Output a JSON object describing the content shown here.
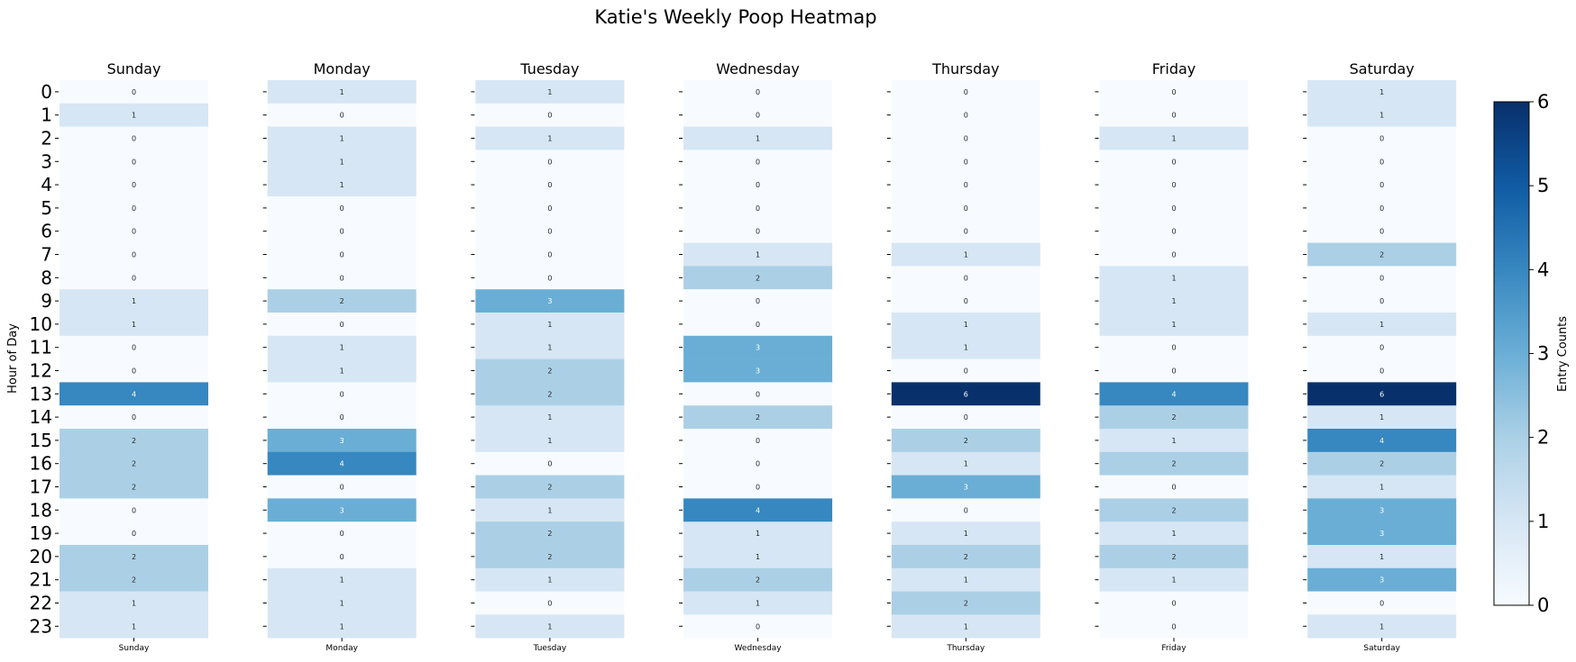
{
  "chart_data": {
    "type": "heatmap",
    "title": "Katie's Weekly Poop Heatmap",
    "ylabel": "Hour of Day",
    "hours": [
      0,
      1,
      2,
      3,
      4,
      5,
      6,
      7,
      8,
      9,
      10,
      11,
      12,
      13,
      14,
      15,
      16,
      17,
      18,
      19,
      20,
      21,
      22,
      23
    ],
    "days": [
      "Sunday",
      "Monday",
      "Tuesday",
      "Wednesday",
      "Thursday",
      "Friday",
      "Saturday"
    ],
    "values": {
      "Sunday": [
        0,
        1,
        0,
        0,
        0,
        0,
        0,
        0,
        0,
        1,
        1,
        0,
        0,
        4,
        0,
        2,
        2,
        2,
        0,
        0,
        2,
        2,
        1,
        1
      ],
      "Monday": [
        1,
        0,
        1,
        1,
        1,
        0,
        0,
        0,
        0,
        2,
        0,
        1,
        1,
        0,
        0,
        3,
        4,
        0,
        3,
        0,
        0,
        1,
        1,
        1
      ],
      "Tuesday": [
        1,
        0,
        1,
        0,
        0,
        0,
        0,
        0,
        0,
        3,
        1,
        1,
        2,
        2,
        1,
        1,
        0,
        2,
        1,
        2,
        2,
        1,
        0,
        1
      ],
      "Wednesday": [
        0,
        0,
        1,
        0,
        0,
        0,
        0,
        1,
        2,
        0,
        0,
        3,
        3,
        0,
        2,
        0,
        0,
        0,
        4,
        1,
        1,
        2,
        1,
        0
      ],
      "Thursday": [
        0,
        0,
        0,
        0,
        0,
        0,
        0,
        1,
        0,
        0,
        1,
        1,
        0,
        6,
        0,
        2,
        1,
        3,
        0,
        1,
        2,
        1,
        2,
        1
      ],
      "Friday": [
        0,
        0,
        1,
        0,
        0,
        0,
        0,
        0,
        1,
        1,
        1,
        0,
        0,
        4,
        2,
        1,
        2,
        0,
        2,
        1,
        2,
        1,
        0,
        0
      ],
      "Saturday": [
        1,
        1,
        0,
        0,
        0,
        0,
        0,
        2,
        0,
        0,
        1,
        0,
        0,
        6,
        1,
        4,
        2,
        1,
        3,
        3,
        1,
        3,
        0,
        1
      ]
    },
    "colorbar": {
      "label": "Entry Counts",
      "min": 0,
      "max": 6,
      "ticks": [
        0,
        1,
        2,
        3,
        4,
        5,
        6
      ],
      "colormap": "Blues",
      "colors": [
        "#f7fbff",
        "#d6e6f4",
        "#abd0e6",
        "#6aaed6",
        "#3787c0",
        "#105ba4",
        "#08306b"
      ]
    }
  }
}
